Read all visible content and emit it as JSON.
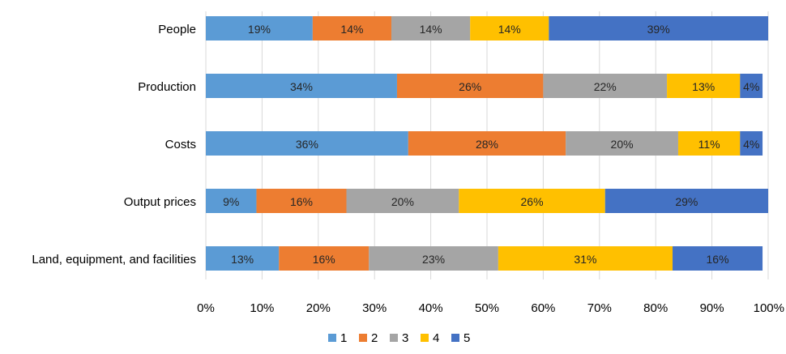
{
  "chart_data": {
    "type": "bar",
    "orientation": "horizontal",
    "stacked": "percent",
    "categories": [
      "People",
      "Production",
      "Costs",
      "Output prices",
      "Land, equipment, and facilities"
    ],
    "series": [
      {
        "name": "1",
        "color": "#5B9BD5",
        "values": [
          19,
          34,
          36,
          9,
          13
        ]
      },
      {
        "name": "2",
        "color": "#ED7D31",
        "values": [
          14,
          26,
          28,
          16,
          16
        ]
      },
      {
        "name": "3",
        "color": "#A5A5A5",
        "values": [
          14,
          22,
          20,
          20,
          23
        ]
      },
      {
        "name": "4",
        "color": "#FFC000",
        "values": [
          14,
          13,
          11,
          26,
          31
        ]
      },
      {
        "name": "5",
        "color": "#4472C4",
        "values": [
          39,
          4,
          4,
          29,
          16
        ]
      }
    ],
    "xlim": [
      0,
      100
    ],
    "xticks": [
      "0%",
      "10%",
      "20%",
      "30%",
      "40%",
      "50%",
      "60%",
      "70%",
      "80%",
      "90%",
      "100%"
    ],
    "data_label_suffix": "%",
    "legend_position": "bottom",
    "grid": true
  }
}
